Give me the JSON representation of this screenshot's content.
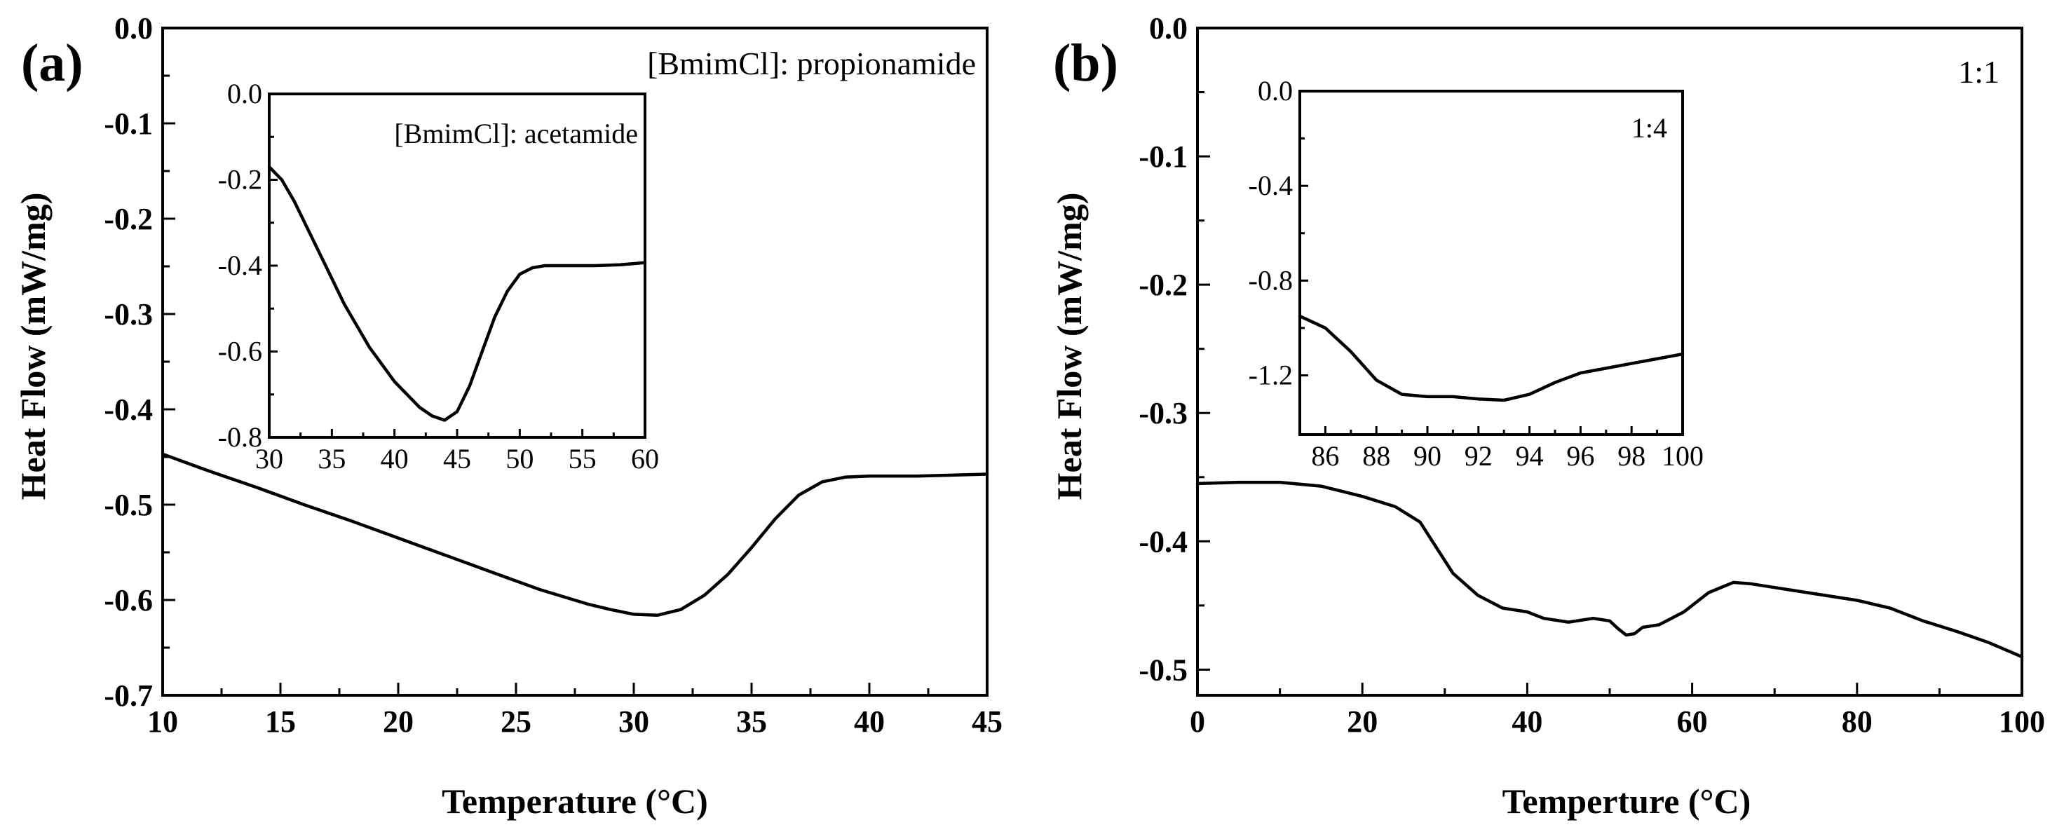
{
  "chart_data": [
    {
      "id": "a",
      "type": "line",
      "panel_label": "(a)",
      "annotation": "[BmimCl]: propionamide",
      "xlabel": "Temperature (°C)",
      "ylabel": "Heat Flow (mW/mg)",
      "xlim": [
        10,
        45
      ],
      "ylim": [
        -0.7,
        0.0
      ],
      "xticks": [
        10,
        15,
        20,
        25,
        30,
        35,
        40,
        45
      ],
      "xtick_labels": [
        "10",
        "15",
        "20",
        "25",
        "30",
        "35",
        "40",
        "45"
      ],
      "yticks": [
        0.0,
        -0.1,
        -0.2,
        -0.3,
        -0.4,
        -0.5,
        -0.6,
        -0.7
      ],
      "ytick_labels": [
        "0.0",
        "-0.1",
        "-0.2",
        "-0.3",
        "-0.4",
        "-0.5",
        "-0.6",
        "-0.7"
      ],
      "x": [
        10,
        12,
        14,
        16,
        18,
        20,
        22,
        24,
        26,
        28,
        29,
        30,
        31,
        32,
        33,
        34,
        35,
        36,
        37,
        38,
        39,
        40,
        42,
        45
      ],
      "y": [
        -0.447,
        -0.465,
        -0.482,
        -0.5,
        -0.517,
        -0.535,
        -0.553,
        -0.571,
        -0.589,
        -0.604,
        -0.61,
        -0.615,
        -0.616,
        -0.61,
        -0.595,
        -0.573,
        -0.545,
        -0.515,
        -0.49,
        -0.476,
        -0.471,
        -0.47,
        -0.47,
        -0.468
      ],
      "inset": {
        "annotation": "[BmimCl]: acetamide",
        "xlim": [
          30,
          60
        ],
        "ylim": [
          -0.8,
          0.0
        ],
        "xticks": [
          30,
          35,
          40,
          45,
          50,
          55,
          60
        ],
        "xtick_labels": [
          "30",
          "35",
          "40",
          "45",
          "50",
          "55",
          "60"
        ],
        "yticks": [
          0.0,
          -0.2,
          -0.4,
          -0.6,
          -0.8
        ],
        "ytick_labels": [
          "0.0",
          "-0.2",
          "-0.4",
          "-0.6",
          "-0.8"
        ],
        "x": [
          30,
          31,
          32,
          34,
          36,
          38,
          40,
          42,
          43,
          44,
          45,
          46,
          47,
          48,
          49,
          50,
          51,
          52,
          54,
          56,
          58,
          60
        ],
        "y": [
          -0.17,
          -0.2,
          -0.25,
          -0.37,
          -0.49,
          -0.59,
          -0.67,
          -0.73,
          -0.75,
          -0.76,
          -0.74,
          -0.68,
          -0.6,
          -0.52,
          -0.46,
          -0.42,
          -0.405,
          -0.4,
          -0.4,
          -0.4,
          -0.398,
          -0.393
        ]
      }
    },
    {
      "id": "b",
      "type": "line",
      "panel_label": "(b)",
      "annotation": "1:1",
      "xlabel": "Temperture (°C)",
      "ylabel": "Heat Flow (mW/mg)",
      "xlim": [
        0,
        100
      ],
      "ylim": [
        -0.52,
        0.0
      ],
      "xticks": [
        0,
        20,
        40,
        60,
        80,
        100
      ],
      "xtick_labels": [
        "0",
        "20",
        "40",
        "60",
        "80",
        "100"
      ],
      "yticks": [
        0.0,
        -0.1,
        -0.2,
        -0.3,
        -0.4,
        -0.5
      ],
      "ytick_labels": [
        "0.0",
        "-0.1",
        "-0.2",
        "-0.3",
        "-0.4",
        "-0.5"
      ],
      "x": [
        0,
        5,
        10,
        15,
        20,
        24,
        27,
        29,
        31,
        34,
        37,
        40,
        42,
        45,
        48,
        50,
        51,
        52,
        53,
        54,
        56,
        59,
        62,
        65,
        67,
        70,
        75,
        80,
        84,
        88,
        92,
        96,
        100
      ],
      "y": [
        -0.355,
        -0.354,
        -0.354,
        -0.357,
        -0.365,
        -0.373,
        -0.385,
        -0.405,
        -0.425,
        -0.442,
        -0.452,
        -0.455,
        -0.46,
        -0.463,
        -0.46,
        -0.462,
        -0.468,
        -0.473,
        -0.472,
        -0.467,
        -0.465,
        -0.455,
        -0.44,
        -0.432,
        -0.433,
        -0.436,
        -0.441,
        -0.446,
        -0.452,
        -0.462,
        -0.47,
        -0.479,
        -0.49
      ],
      "inset": {
        "annotation": "1:4",
        "xlim": [
          85,
          100
        ],
        "ylim": [
          -1.45,
          0.0
        ],
        "xticks": [
          86,
          88,
          90,
          92,
          94,
          96,
          98,
          100
        ],
        "xtick_labels": [
          "86",
          "88",
          "90",
          "92",
          "94",
          "96",
          "98",
          "100"
        ],
        "yticks": [
          0.0,
          -0.4,
          -0.8,
          -1.2
        ],
        "ytick_labels": [
          "0.0",
          "-0.4",
          "-0.8",
          "-1.2"
        ],
        "x": [
          85,
          86,
          87,
          88,
          89,
          90,
          91,
          92,
          93,
          94,
          95,
          96,
          97,
          98,
          99,
          100
        ],
        "y": [
          -0.95,
          -1.0,
          -1.1,
          -1.22,
          -1.28,
          -1.29,
          -1.29,
          -1.3,
          -1.305,
          -1.28,
          -1.23,
          -1.19,
          -1.17,
          -1.15,
          -1.13,
          -1.11
        ]
      }
    }
  ]
}
